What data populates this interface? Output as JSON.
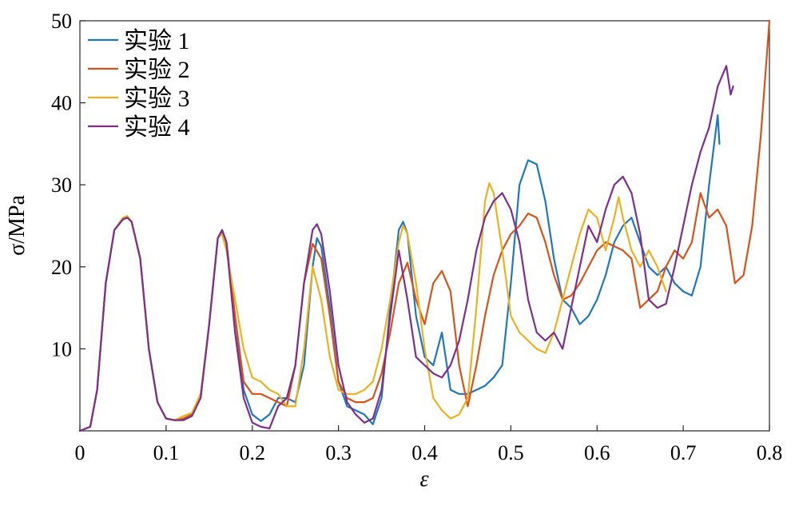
{
  "chart_data": {
    "type": "line",
    "xlabel": "ε",
    "ylabel": "σ/MPa",
    "xlim": [
      0,
      0.8
    ],
    "ylim": [
      0,
      50
    ],
    "xticks": [
      "0",
      "0.1",
      "0.2",
      "0.3",
      "0.4",
      "0.5",
      "0.6",
      "0.7",
      "0.8"
    ],
    "yticks": [
      "10",
      "20",
      "30",
      "40",
      "50"
    ],
    "grid": false,
    "legend_position": "top-left",
    "series": [
      {
        "name": "实验 1",
        "color": "#1f77c0",
        "x": [
          0,
          0.012,
          0.02,
          0.03,
          0.04,
          0.05,
          0.055,
          0.06,
          0.07,
          0.08,
          0.09,
          0.1,
          0.11,
          0.12,
          0.13,
          0.14,
          0.15,
          0.16,
          0.165,
          0.17,
          0.18,
          0.19,
          0.2,
          0.21,
          0.22,
          0.23,
          0.24,
          0.25,
          0.26,
          0.27,
          0.275,
          0.28,
          0.29,
          0.3,
          0.31,
          0.32,
          0.33,
          0.34,
          0.35,
          0.36,
          0.37,
          0.375,
          0.38,
          0.39,
          0.4,
          0.41,
          0.42,
          0.43,
          0.44,
          0.45,
          0.46,
          0.47,
          0.48,
          0.49,
          0.5,
          0.51,
          0.52,
          0.53,
          0.54,
          0.55,
          0.56,
          0.57,
          0.58,
          0.59,
          0.6,
          0.61,
          0.62,
          0.63,
          0.64,
          0.65,
          0.66,
          0.67,
          0.68,
          0.69,
          0.7,
          0.71,
          0.72,
          0.73,
          0.74,
          0.742
        ],
        "y": [
          0,
          0.5,
          5,
          18,
          24.5,
          25.8,
          26,
          25.5,
          21,
          10,
          3.5,
          1.5,
          1.3,
          1.5,
          2,
          4,
          13,
          23.5,
          24.2,
          23,
          14,
          5,
          2,
          1.2,
          2,
          4,
          4,
          3.5,
          8,
          20,
          23.5,
          22.5,
          15,
          6,
          3,
          2.5,
          2,
          0.8,
          4,
          15,
          24.5,
          25.5,
          24,
          14,
          9,
          8,
          12,
          5,
          4.5,
          4.5,
          5,
          5.5,
          6.5,
          8,
          18,
          30,
          33,
          32.5,
          28,
          21,
          16,
          15,
          13,
          14,
          16,
          19,
          23,
          25,
          26,
          23,
          20,
          19,
          20,
          18,
          17,
          16.5,
          20,
          30,
          38.5,
          35
        ]
      },
      {
        "name": "实验 2",
        "color": "#d95319",
        "x": [
          0,
          0.012,
          0.02,
          0.03,
          0.04,
          0.05,
          0.055,
          0.06,
          0.07,
          0.08,
          0.09,
          0.1,
          0.11,
          0.12,
          0.13,
          0.14,
          0.15,
          0.16,
          0.165,
          0.17,
          0.18,
          0.19,
          0.2,
          0.21,
          0.22,
          0.23,
          0.24,
          0.25,
          0.26,
          0.27,
          0.28,
          0.29,
          0.3,
          0.31,
          0.32,
          0.33,
          0.34,
          0.35,
          0.36,
          0.37,
          0.38,
          0.39,
          0.4,
          0.41,
          0.42,
          0.43,
          0.44,
          0.45,
          0.46,
          0.47,
          0.48,
          0.49,
          0.5,
          0.51,
          0.52,
          0.53,
          0.54,
          0.55,
          0.56,
          0.57,
          0.58,
          0.59,
          0.6,
          0.61,
          0.62,
          0.63,
          0.64,
          0.65,
          0.66,
          0.67,
          0.68,
          0.69,
          0.7,
          0.71,
          0.72,
          0.73,
          0.74,
          0.75,
          0.76,
          0.77,
          0.78,
          0.79,
          0.8
        ],
        "y": [
          0,
          0.5,
          5,
          18,
          24.5,
          25.8,
          26,
          25.5,
          21,
          10,
          3.5,
          1.5,
          1.3,
          1.5,
          2,
          4,
          13,
          23.5,
          24.5,
          23,
          14,
          6,
          4.5,
          4.5,
          4,
          3.5,
          3,
          8,
          18,
          22.8,
          21,
          14,
          6,
          4,
          3.5,
          3.5,
          4,
          7,
          12,
          18,
          20.5,
          16,
          13,
          18,
          19.5,
          17,
          8,
          3,
          8,
          14,
          19,
          22,
          24,
          25,
          26.5,
          26,
          23,
          19,
          16,
          16.5,
          18,
          20,
          22,
          23,
          22.5,
          22,
          21,
          15,
          16,
          17,
          20,
          22,
          21,
          23,
          29,
          26,
          27,
          25,
          18,
          19,
          25,
          36,
          50
        ]
      },
      {
        "name": "实验 3",
        "color": "#edb120",
        "x": [
          0,
          0.012,
          0.02,
          0.03,
          0.04,
          0.05,
          0.055,
          0.06,
          0.07,
          0.08,
          0.09,
          0.1,
          0.11,
          0.12,
          0.13,
          0.14,
          0.15,
          0.16,
          0.165,
          0.17,
          0.18,
          0.19,
          0.2,
          0.21,
          0.22,
          0.23,
          0.24,
          0.25,
          0.26,
          0.27,
          0.28,
          0.29,
          0.3,
          0.31,
          0.32,
          0.33,
          0.34,
          0.35,
          0.36,
          0.37,
          0.375,
          0.38,
          0.39,
          0.4,
          0.41,
          0.42,
          0.43,
          0.44,
          0.45,
          0.46,
          0.47,
          0.475,
          0.48,
          0.49,
          0.5,
          0.51,
          0.52,
          0.53,
          0.54,
          0.55,
          0.56,
          0.57,
          0.58,
          0.59,
          0.6,
          0.61,
          0.62,
          0.625,
          0.63,
          0.64,
          0.65,
          0.66,
          0.67,
          0.68
        ],
        "y": [
          0,
          0.5,
          5,
          18,
          24.5,
          26,
          26.2,
          25.5,
          21,
          10,
          3.5,
          1.5,
          1.3,
          1.8,
          2.2,
          4.5,
          13,
          23.5,
          24,
          22,
          16,
          10,
          6.5,
          6,
          5,
          4.5,
          3,
          3,
          10,
          20,
          16,
          9,
          5,
          4.5,
          4.5,
          5,
          6,
          10,
          16,
          23,
          25,
          24,
          18,
          10,
          4,
          2.5,
          1.5,
          2,
          4,
          15,
          28,
          30.2,
          29,
          22,
          14,
          12,
          11,
          10,
          9.5,
          12,
          16,
          20,
          24,
          27,
          26,
          22,
          26,
          28.5,
          26,
          22,
          20,
          22,
          20,
          17
        ]
      },
      {
        "name": "实验 4",
        "color": "#7e2f8e",
        "x": [
          0,
          0.012,
          0.02,
          0.03,
          0.04,
          0.05,
          0.055,
          0.06,
          0.07,
          0.08,
          0.09,
          0.1,
          0.11,
          0.12,
          0.13,
          0.14,
          0.15,
          0.16,
          0.165,
          0.17,
          0.18,
          0.19,
          0.2,
          0.21,
          0.22,
          0.23,
          0.24,
          0.25,
          0.26,
          0.27,
          0.275,
          0.28,
          0.29,
          0.3,
          0.31,
          0.32,
          0.33,
          0.34,
          0.35,
          0.36,
          0.37,
          0.38,
          0.39,
          0.4,
          0.41,
          0.42,
          0.43,
          0.44,
          0.45,
          0.46,
          0.47,
          0.48,
          0.49,
          0.5,
          0.51,
          0.52,
          0.53,
          0.54,
          0.55,
          0.56,
          0.57,
          0.58,
          0.59,
          0.6,
          0.61,
          0.62,
          0.63,
          0.64,
          0.65,
          0.66,
          0.67,
          0.68,
          0.69,
          0.7,
          0.71,
          0.72,
          0.73,
          0.74,
          0.75,
          0.755,
          0.758
        ],
        "y": [
          0,
          0.5,
          5,
          18,
          24.5,
          25.8,
          26,
          25.5,
          21,
          10,
          3.5,
          1.5,
          1.3,
          1.3,
          1.8,
          4,
          13,
          23.5,
          24.5,
          23,
          12,
          4,
          1,
          0.5,
          0.3,
          3,
          4,
          8,
          18,
          24.5,
          25.2,
          24,
          17,
          8,
          3.5,
          2,
          1,
          1.5,
          5,
          14,
          22,
          16,
          9,
          8,
          7,
          6.5,
          8,
          11,
          16,
          22,
          26,
          28,
          29,
          27,
          23,
          16,
          12,
          11,
          12,
          10,
          15,
          20,
          25,
          23,
          27,
          30,
          31,
          29,
          24,
          16,
          15,
          15.5,
          20,
          25,
          30,
          34,
          37,
          42,
          44.5,
          41,
          42
        ]
      }
    ]
  }
}
